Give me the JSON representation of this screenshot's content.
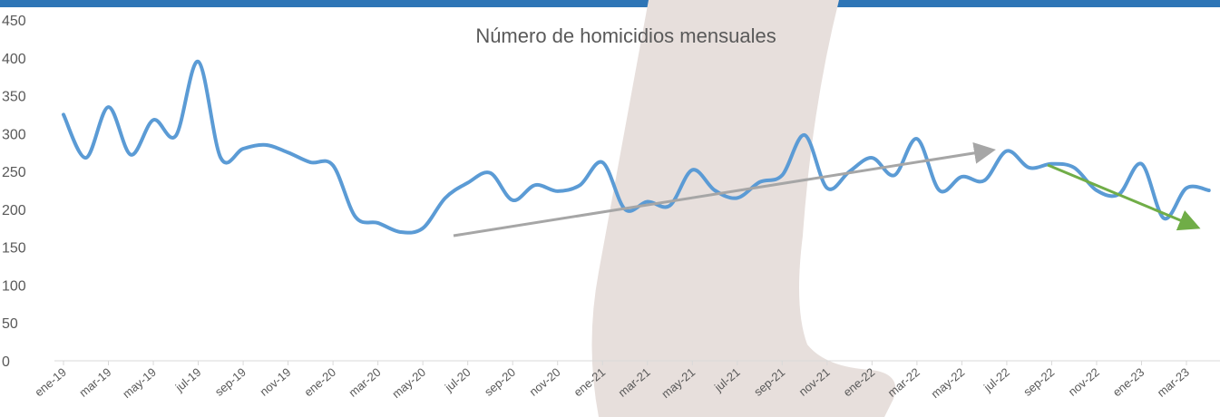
{
  "chart_data": {
    "type": "line",
    "title": "Número de homicidios mensuales",
    "categories": [
      "ene-19",
      null,
      "mar-19",
      null,
      "may-19",
      null,
      "jul-19",
      null,
      "sep-19",
      null,
      "nov-19",
      null,
      "ene-20",
      null,
      "mar-20",
      null,
      "may-20",
      null,
      "jul-20",
      null,
      "sep-20",
      null,
      "nov-20",
      null,
      "ene-21",
      null,
      "mar-21",
      null,
      "may-21",
      null,
      "jul-21",
      null,
      "sep-21",
      null,
      "nov-21",
      null,
      "ene-22",
      null,
      "mar-22",
      null,
      "may-22",
      null,
      "jul-22",
      null,
      "sep-22",
      null,
      "nov-22",
      null,
      "ene-23",
      null,
      "mar-23",
      null
    ],
    "series": [
      {
        "color": "#5b9bd5",
        "values": [
          325,
          268,
          335,
          272,
          318,
          297,
          395,
          268,
          280,
          285,
          275,
          262,
          258,
          190,
          182,
          170,
          175,
          215,
          235,
          248,
          212,
          232,
          224,
          232,
          262,
          200,
          210,
          205,
          252,
          225,
          215,
          236,
          245,
          298,
          228,
          250,
          268,
          245,
          293,
          225,
          243,
          238,
          277,
          255,
          260,
          255,
          225,
          220,
          260,
          188,
          228,
          225
        ]
      }
    ],
    "ylim": [
      0,
      450
    ],
    "yticks": [
      0,
      50,
      100,
      150,
      200,
      250,
      300,
      350,
      400,
      450
    ],
    "grid": false
  }
}
